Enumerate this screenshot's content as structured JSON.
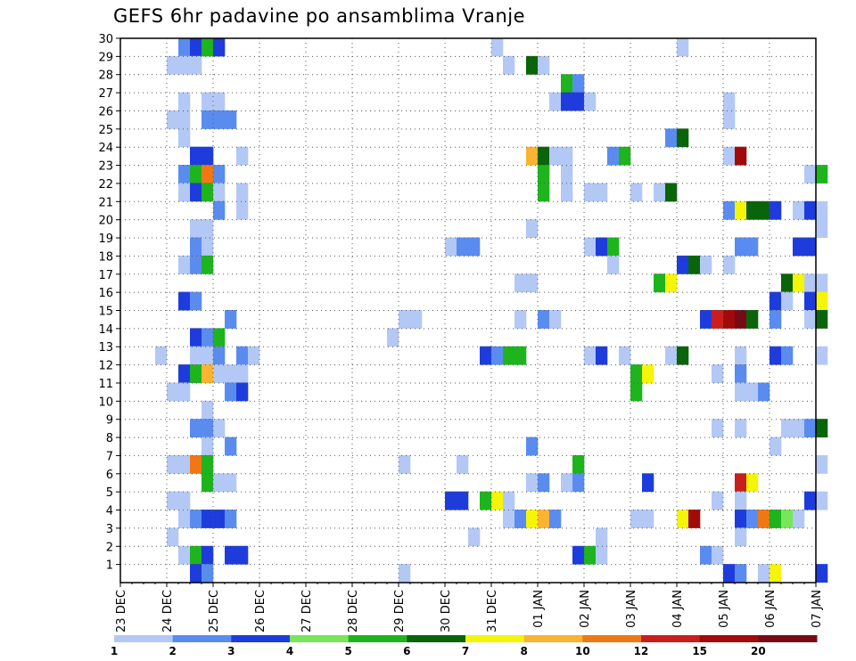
{
  "chart_data": {
    "type": "heatmap",
    "title": "GEFS 6hr padavine po ansamblima Vranje",
    "xlabel": "",
    "ylabel": "",
    "x_tick_labels": [
      "23 DEC",
      "24 DEC",
      "25 DEC",
      "26 DEC",
      "27 DEC",
      "28 DEC",
      "29 DEC",
      "30 DEC",
      "31 DEC",
      "01 JAN",
      "02 JAN",
      "03 JAN",
      "04 JAN",
      "05 JAN",
      "06 JAN",
      "07 JAN"
    ],
    "x_steps_per_day": 4,
    "x_step_hours": 6,
    "y_tick_labels": [
      "1",
      "2",
      "3",
      "4",
      "5",
      "6",
      "7",
      "8",
      "9",
      "10",
      "11",
      "12",
      "13",
      "14",
      "15",
      "16",
      "17",
      "18",
      "19",
      "20",
      "21",
      "22",
      "23",
      "24",
      "25",
      "26",
      "27",
      "28",
      "29",
      "30"
    ],
    "y_range": [
      0,
      30
    ],
    "grid": true,
    "colorbar": {
      "bounds": [
        "1",
        "2",
        "3",
        "4",
        "5",
        "6",
        "7",
        "8",
        "10",
        "12",
        "15",
        "20"
      ],
      "colors": [
        "#b4c8f5",
        "#5a8cf0",
        "#1e3cdc",
        "#78e65a",
        "#1eb41e",
        "#0a640a",
        "#f5f50a",
        "#fab432",
        "#f07814",
        "#c81e1e",
        "#a00a0a",
        "#780a14"
      ]
    },
    "cell_encoding": "member:column_from_23DEC00z:class_index",
    "cells": [
      "30:5:2",
      "30:6:3",
      "30:7:5",
      "30:8:3",
      "30:32:1",
      "30:48:1",
      "29:4:1",
      "29:5:1",
      "29:6:1",
      "29:33:1",
      "29:35:6",
      "29:36:1",
      "28:38:5",
      "28:39:2",
      "27:5:1",
      "27:7:1",
      "27:8:1",
      "27:37:1",
      "27:38:3",
      "27:39:3",
      "27:40:1",
      "27:52:1",
      "26:4:1",
      "26:5:1",
      "26:7:2",
      "26:8:2",
      "26:9:2",
      "26:52:1",
      "25:5:1",
      "25:47:2",
      "25:48:6",
      "24:6:3",
      "24:7:3",
      "24:10:1",
      "24:35:8",
      "24:36:6",
      "24:37:1",
      "24:38:1",
      "24:42:2",
      "24:43:5",
      "24:52:1",
      "24:53:11",
      "23:5:2",
      "23:6:5",
      "23:7:9",
      "23:8:2",
      "23:36:5",
      "23:38:1",
      "23:59:1",
      "23:60:5",
      "22:5:1",
      "22:6:3",
      "22:7:5",
      "22:8:1",
      "22:10:1",
      "22:36:5",
      "22:38:1",
      "22:40:1",
      "22:41:1",
      "22:44:1",
      "22:46:1",
      "22:47:6",
      "21:8:2",
      "21:10:1",
      "21:52:2",
      "21:53:7",
      "21:54:6",
      "21:55:6",
      "21:56:3",
      "21:58:1",
      "21:59:3",
      "21:60:1",
      "20:6:1",
      "20:7:1",
      "20:35:1",
      "20:60:1",
      "19:6:2",
      "19:7:1",
      "19:28:1",
      "19:29:2",
      "19:30:2",
      "19:40:1",
      "19:41:3",
      "19:42:5",
      "19:53:2",
      "19:54:2",
      "19:58:3",
      "19:59:3",
      "18:5:1",
      "18:6:2",
      "18:7:5",
      "18:42:1",
      "18:48:3",
      "18:49:6",
      "18:50:1",
      "18:52:1",
      "17:34:1",
      "17:35:1",
      "17:46:5",
      "17:47:7",
      "17:57:6",
      "17:58:7",
      "17:59:1",
      "17:60:1",
      "16:5:3",
      "16:6:2",
      "16:56:3",
      "16:57:1",
      "16:59:3",
      "16:60:7",
      "15:9:2",
      "15:24:1",
      "15:25:1",
      "15:34:1",
      "15:36:2",
      "15:37:1",
      "15:50:3",
      "15:51:10",
      "15:52:11",
      "15:53:12",
      "15:54:6",
      "15:56:2",
      "15:59:1",
      "15:60:6",
      "14:23:1",
      "14:6:3",
      "14:7:2",
      "14:8:5",
      "13:3:1",
      "13:6:1",
      "13:7:1",
      "13:8:2",
      "13:10:2",
      "13:11:1",
      "13:31:3",
      "13:32:2",
      "13:33:5",
      "13:34:5",
      "13:40:1",
      "13:41:3",
      "13:43:1",
      "13:47:1",
      "13:48:6",
      "13:53:1",
      "13:56:3",
      "13:57:2",
      "13:60:1",
      "12:5:3",
      "12:6:5",
      "12:7:8",
      "12:8:1",
      "12:9:1",
      "12:10:1",
      "12:44:5",
      "12:45:7",
      "12:51:1",
      "12:53:2",
      "11:4:1",
      "11:5:1",
      "11:9:2",
      "11:10:3",
      "11:44:5",
      "11:53:1",
      "11:54:1",
      "11:55:2",
      "10:7:1",
      "9:6:2",
      "9:7:2",
      "9:8:1",
      "9:51:1",
      "9:53:1",
      "9:57:1",
      "9:58:1",
      "9:59:2",
      "9:60:6",
      "8:7:1",
      "8:9:2",
      "8:35:2",
      "8:56:1",
      "7:4:1",
      "7:5:1",
      "7:6:9",
      "7:7:5",
      "7:24:1",
      "7:29:1",
      "7:39:5",
      "7:60:1",
      "6:7:5",
      "6:8:1",
      "6:9:1",
      "6:35:1",
      "6:36:2",
      "6:38:1",
      "6:39:2",
      "6:45:3",
      "6:53:10",
      "6:54:7",
      "5:4:1",
      "5:5:1",
      "5:28:3",
      "5:29:3",
      "5:31:5",
      "5:32:7",
      "5:33:1",
      "5:51:1",
      "5:53:1",
      "5:59:3",
      "5:60:1",
      "4:5:1",
      "4:6:2",
      "4:7:3",
      "4:8:3",
      "4:9:2",
      "4:33:1",
      "4:34:2",
      "4:35:7",
      "4:36:8",
      "4:37:2",
      "4:44:1",
      "4:45:1",
      "4:48:7",
      "4:49:11",
      "4:53:3",
      "4:54:2",
      "4:55:9",
      "4:56:5",
      "4:57:4",
      "4:58:1",
      "3:4:1",
      "3:30:1",
      "3:41:1",
      "3:53:1",
      "2:5:1",
      "2:6:5",
      "2:7:3",
      "2:9:3",
      "2:10:3",
      "2:39:3",
      "2:40:5",
      "2:41:1",
      "2:50:2",
      "2:51:1",
      "1:6:3",
      "1:7:2",
      "1:24:1",
      "1:52:3",
      "1:53:2",
      "1:55:1",
      "1:56:7",
      "1:60:3"
    ]
  }
}
